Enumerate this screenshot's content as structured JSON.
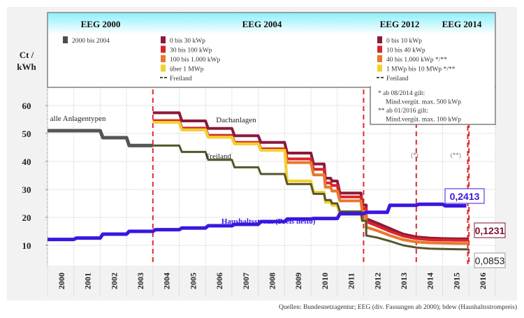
{
  "chart_data": {
    "type": "line",
    "title": "",
    "ylabel": "Ct / kWh",
    "ylabel_lines": [
      "Ct /",
      "kWh"
    ],
    "xlabel": "",
    "ylim": [
      0,
      65
    ],
    "yticks": [
      10,
      20,
      30,
      40,
      50,
      60
    ],
    "categories": [
      "2000",
      "2001",
      "2002",
      "2003",
      "2004",
      "2005",
      "2006",
      "2007",
      "2008",
      "2009",
      "2010",
      "2011",
      "2012",
      "2013",
      "2014",
      "2015",
      "2016"
    ],
    "grid": true,
    "periods": [
      {
        "label": "EEG 2000",
        "start": 2000,
        "end": 2004
      },
      {
        "label": "EEG 2004",
        "start": 2004,
        "end": 2012
      },
      {
        "label": "EEG 2012",
        "start": 2012,
        "end": 2014
      },
      {
        "label": "EEG 2014",
        "start": 2014,
        "end": 2016
      }
    ],
    "legend_groups": [
      {
        "period": "EEG 2000",
        "items": [
          {
            "label": "2000 bis 2004",
            "color": "#4d4d4d",
            "kind": "box"
          }
        ]
      },
      {
        "period": "EEG 2004",
        "items": [
          {
            "label": "0 bis 30 kWp",
            "color": "#8b1a3a",
            "kind": "box"
          },
          {
            "label": "30 bis 100 kWp",
            "color": "#d9242a",
            "kind": "box"
          },
          {
            "label": "100 bis 1.000 kWp",
            "color": "#e8782a",
            "kind": "box"
          },
          {
            "label": "über 1 MWp",
            "color": "#f2d12e",
            "kind": "box"
          },
          {
            "label": "Freiland",
            "color": "#4d4d33",
            "kind": "dash"
          }
        ]
      },
      {
        "period": "EEG 2012",
        "items": [
          {
            "label": "0 bis 10 kWp",
            "color": "#8b1a3a",
            "kind": "box"
          },
          {
            "label": "10 bis 40 kWp",
            "color": "#d9242a",
            "kind": "box"
          },
          {
            "label": "40 bis 1.000 kWp */**",
            "color": "#e8782a",
            "kind": "box"
          },
          {
            "label": "1 MWp bis 10 MWp */**",
            "color": "#f2d12e",
            "kind": "box"
          },
          {
            "label": "Freiland",
            "color": "#4d4d33",
            "kind": "dash"
          }
        ]
      }
    ],
    "footnotes": [
      "*  ab  08/2014 gilt:",
      "Mind.vergüt. max. 500 kWp",
      "** ab  01/2016 gilt:",
      "Mind.vergüt. max. 100 kWp"
    ],
    "series": [
      {
        "name": "alle Anlagentypen",
        "color": "#555555",
        "points": [
          [
            2000.0,
            51
          ],
          [
            2002.0,
            51
          ],
          [
            2002.1,
            48.5
          ],
          [
            2003.0,
            48.5
          ],
          [
            2003.1,
            45.7
          ],
          [
            2004.0,
            45.7
          ]
        ]
      },
      {
        "name": "0 bis 30 kWp / 0 bis 10 kWp",
        "color": "#8b1a3a",
        "points": [
          [
            2004.0,
            57.4
          ],
          [
            2005.0,
            57.4
          ],
          [
            2005.1,
            54.5
          ],
          [
            2006.0,
            54.5
          ],
          [
            2006.1,
            51.8
          ],
          [
            2007.0,
            51.8
          ],
          [
            2007.1,
            49.2
          ],
          [
            2008.0,
            49.2
          ],
          [
            2008.1,
            46.8
          ],
          [
            2009.0,
            46.8
          ],
          [
            2009.1,
            43.0
          ],
          [
            2010.0,
            43.0
          ],
          [
            2010.1,
            39.1
          ],
          [
            2010.5,
            39.1
          ],
          [
            2010.55,
            34.0
          ],
          [
            2010.75,
            34.0
          ],
          [
            2010.8,
            33.0
          ],
          [
            2011.0,
            33.0
          ],
          [
            2011.1,
            28.7
          ],
          [
            2011.9,
            28.7
          ],
          [
            2011.95,
            24.4
          ],
          [
            2012.1,
            24.4
          ],
          [
            2012.1,
            19.5
          ],
          [
            2012.5,
            18.0
          ],
          [
            2013.0,
            16.0
          ],
          [
            2013.5,
            14.0
          ],
          [
            2014.0,
            13.0
          ],
          [
            2014.5,
            12.6
          ],
          [
            2015.0,
            12.4
          ],
          [
            2015.5,
            12.3
          ],
          [
            2016.0,
            12.31
          ]
        ]
      },
      {
        "name": "30 bis 100 kWp / 10 bis 40 kWp",
        "color": "#d9242a",
        "points": [
          [
            2004.0,
            54.6
          ],
          [
            2005.0,
            54.6
          ],
          [
            2005.1,
            51.9
          ],
          [
            2006.0,
            51.9
          ],
          [
            2006.1,
            49.3
          ],
          [
            2007.0,
            49.3
          ],
          [
            2007.1,
            46.8
          ],
          [
            2008.0,
            46.8
          ],
          [
            2008.1,
            44.5
          ],
          [
            2009.0,
            44.5
          ],
          [
            2009.1,
            40.9
          ],
          [
            2010.0,
            40.9
          ],
          [
            2010.1,
            37.2
          ],
          [
            2010.5,
            37.2
          ],
          [
            2010.55,
            32.3
          ],
          [
            2010.75,
            32.3
          ],
          [
            2010.8,
            31.4
          ],
          [
            2011.0,
            31.4
          ],
          [
            2011.1,
            27.3
          ],
          [
            2011.9,
            27.3
          ],
          [
            2011.95,
            23.2
          ],
          [
            2012.1,
            23.2
          ],
          [
            2012.1,
            18.5
          ],
          [
            2012.5,
            17.0
          ],
          [
            2013.0,
            15.0
          ],
          [
            2013.5,
            13.3
          ],
          [
            2014.0,
            12.4
          ],
          [
            2014.5,
            12.0
          ],
          [
            2015.0,
            11.9
          ],
          [
            2015.5,
            11.8
          ],
          [
            2016.0,
            11.8
          ]
        ]
      },
      {
        "name": "100 bis 1.000 kWp / 40 bis 1.000 kWp",
        "color": "#e8782a",
        "points": [
          [
            2004.0,
            54.0
          ],
          [
            2005.0,
            54.0
          ],
          [
            2005.1,
            51.3
          ],
          [
            2006.0,
            51.3
          ],
          [
            2006.1,
            48.7
          ],
          [
            2007.0,
            48.7
          ],
          [
            2007.1,
            46.3
          ],
          [
            2008.0,
            46.3
          ],
          [
            2008.1,
            44.0
          ],
          [
            2009.0,
            44.0
          ],
          [
            2009.1,
            39.6
          ],
          [
            2010.0,
            39.6
          ],
          [
            2010.1,
            35.2
          ],
          [
            2010.5,
            35.2
          ],
          [
            2010.55,
            30.8
          ],
          [
            2010.75,
            30.8
          ],
          [
            2010.8,
            29.4
          ],
          [
            2011.0,
            29.4
          ],
          [
            2011.1,
            25.9
          ],
          [
            2011.9,
            25.9
          ],
          [
            2011.95,
            22.0
          ],
          [
            2012.1,
            22.0
          ],
          [
            2012.1,
            16.5
          ],
          [
            2012.5,
            15.3
          ],
          [
            2013.0,
            13.5
          ],
          [
            2013.5,
            12.0
          ],
          [
            2014.0,
            11.2
          ],
          [
            2014.5,
            10.9
          ],
          [
            2015.0,
            10.8
          ],
          [
            2015.5,
            10.7
          ],
          [
            2016.0,
            10.7
          ]
        ]
      },
      {
        "name": "über 1 MWp / 1 MWp bis 10 MWp",
        "color": "#f2d12e",
        "points": [
          [
            2004.0,
            54.0
          ],
          [
            2005.0,
            54.0
          ],
          [
            2005.1,
            51.3
          ],
          [
            2006.0,
            51.3
          ],
          [
            2006.1,
            48.7
          ],
          [
            2007.0,
            48.7
          ],
          [
            2007.1,
            46.3
          ],
          [
            2008.0,
            46.3
          ],
          [
            2008.1,
            44.0
          ],
          [
            2009.0,
            44.0
          ],
          [
            2009.1,
            33.0
          ],
          [
            2010.0,
            33.0
          ],
          [
            2010.1,
            29.0
          ],
          [
            2010.5,
            29.0
          ],
          [
            2010.55,
            25.4
          ],
          [
            2010.75,
            25.4
          ],
          [
            2010.8,
            24.3
          ],
          [
            2011.0,
            24.3
          ],
          [
            2011.1,
            21.1
          ],
          [
            2011.9,
            21.1
          ],
          [
            2011.95,
            18.8
          ],
          [
            2012.1,
            18.8
          ]
        ]
      },
      {
        "name": "Freiland",
        "color": "#55552d",
        "points": [
          [
            2004.0,
            45.7
          ],
          [
            2005.0,
            45.7
          ],
          [
            2005.1,
            43.4
          ],
          [
            2006.0,
            43.4
          ],
          [
            2006.1,
            40.6
          ],
          [
            2007.0,
            40.6
          ],
          [
            2007.1,
            37.9
          ],
          [
            2008.0,
            37.9
          ],
          [
            2008.1,
            35.5
          ],
          [
            2009.0,
            35.5
          ],
          [
            2009.1,
            31.9
          ],
          [
            2010.0,
            31.9
          ],
          [
            2010.1,
            28.4
          ],
          [
            2010.5,
            28.4
          ],
          [
            2010.55,
            26.2
          ],
          [
            2010.75,
            26.2
          ],
          [
            2010.8,
            25.0
          ],
          [
            2011.0,
            25.0
          ],
          [
            2011.1,
            22.1
          ],
          [
            2011.9,
            22.1
          ],
          [
            2011.95,
            18.8
          ],
          [
            2012.1,
            18.8
          ],
          [
            2012.1,
            13.5
          ],
          [
            2012.5,
            12.8
          ],
          [
            2013.0,
            11.5
          ],
          [
            2013.5,
            10.0
          ],
          [
            2014.0,
            9.2
          ],
          [
            2014.5,
            8.8
          ],
          [
            2015.0,
            8.7
          ],
          [
            2015.5,
            8.6
          ],
          [
            2016.0,
            8.53
          ]
        ]
      },
      {
        "name": "Haushaltsstrom (Preis netto)",
        "color": "#3b16e0",
        "points": [
          [
            2000.0,
            12.1
          ],
          [
            2001.0,
            12.1
          ],
          [
            2001.1,
            12.6
          ],
          [
            2002.0,
            12.6
          ],
          [
            2002.1,
            14.0
          ],
          [
            2003.0,
            14.0
          ],
          [
            2003.1,
            15.0
          ],
          [
            2004.0,
            15.0
          ],
          [
            2004.1,
            15.6
          ],
          [
            2005.0,
            15.6
          ],
          [
            2005.1,
            16.2
          ],
          [
            2006.0,
            16.2
          ],
          [
            2006.1,
            17.0
          ],
          [
            2007.0,
            17.0
          ],
          [
            2007.1,
            17.5
          ],
          [
            2008.0,
            17.5
          ],
          [
            2008.1,
            18.5
          ],
          [
            2009.0,
            18.5
          ],
          [
            2009.1,
            19.4
          ],
          [
            2010.0,
            19.4
          ],
          [
            2010.1,
            19.6
          ],
          [
            2011.0,
            19.6
          ],
          [
            2011.1,
            21.3
          ],
          [
            2012.0,
            21.3
          ],
          [
            2012.1,
            21.8
          ],
          [
            2012.9,
            21.8
          ],
          [
            2013.0,
            24.3
          ],
          [
            2014.0,
            24.3
          ],
          [
            2014.1,
            24.7
          ],
          [
            2015.0,
            24.7
          ],
          [
            2015.1,
            24.13
          ],
          [
            2015.9,
            24.13
          ]
        ]
      }
    ],
    "annotations": [
      {
        "text": "alle Anlagentypen",
        "x": 2000.1,
        "y": 54.5
      },
      {
        "text": "Dachanlagen",
        "x": 2006.4,
        "y": 54.0
      },
      {
        "text": "Freiland",
        "x": 2006.0,
        "y": 41.0
      },
      {
        "text": "Haushaltsstrom (Preis netto)",
        "x": 2006.6,
        "y": 17.8
      },
      {
        "text": "(*)",
        "x": 2013.8,
        "y": 41.5
      },
      {
        "text": "(**)",
        "x": 2015.3,
        "y": 41.5
      }
    ],
    "value_labels": [
      {
        "text": "0,2413",
        "color": "#3b16e0",
        "series": "Haushaltsstrom (Preis netto)"
      },
      {
        "text": "0,1231",
        "color": "#7a1430",
        "series": "0 bis 30 kWp / 0 bis 10 kWp"
      },
      {
        "text": "0,0853",
        "color": "#222222",
        "series": "Freiland"
      }
    ],
    "source": "Quellen: Bundesnetzagentur; EEG (div. Fassungen ab 2000); bdew (Haushaltsstrompreis)"
  }
}
